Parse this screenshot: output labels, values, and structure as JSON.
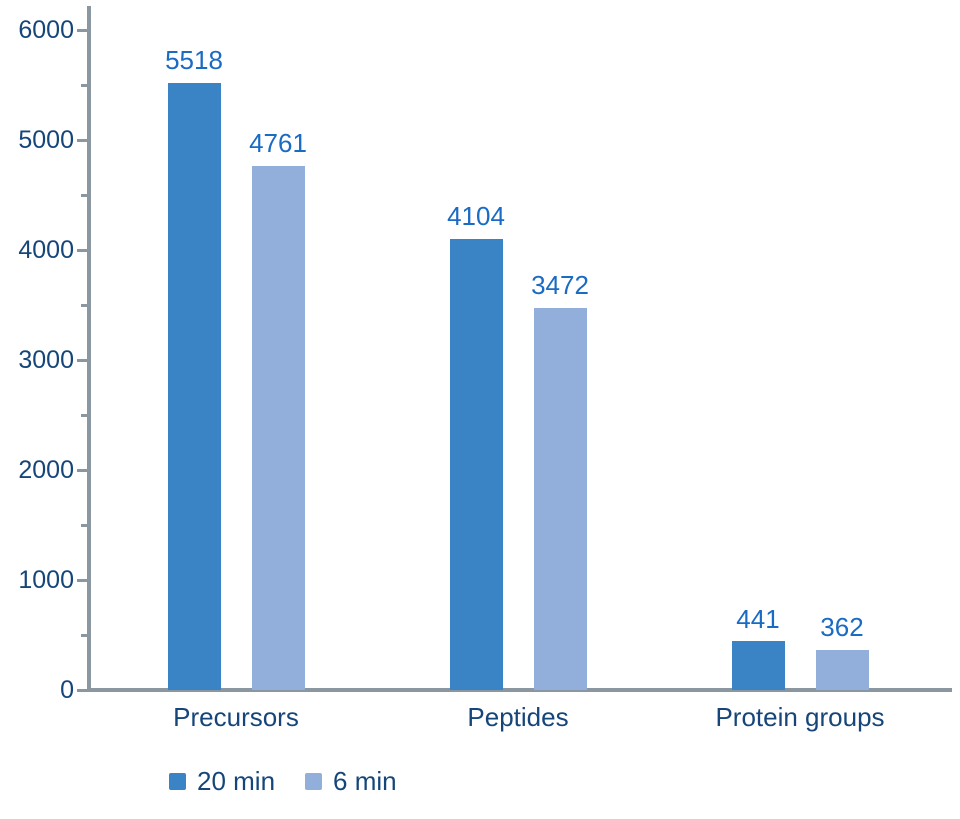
{
  "chart_data": {
    "type": "bar",
    "title": "",
    "categories": [
      "Precursors",
      "Peptides",
      "Protein groups"
    ],
    "series": [
      {
        "name": "20 min",
        "color": "#3A83C5",
        "values": [
          5518,
          4104,
          441
        ]
      },
      {
        "name": "6 min",
        "color": "#92AEDB",
        "values": [
          4761,
          3472,
          362
        ]
      }
    ],
    "xlabel": "",
    "ylabel": "",
    "ylim": [
      0,
      6000
    ],
    "y_major_ticks": [
      0,
      1000,
      2000,
      3000,
      4000,
      5000,
      6000
    ],
    "y_minor_tick_step": 500,
    "grid": false,
    "value_labels": true,
    "legend_position": "bottom-left"
  },
  "colors": {
    "series_20min": "#3A83C5",
    "series_6min": "#92AEDB",
    "axis_line": "#8A97A1",
    "tick_label_text": "#164679",
    "category_label_text": "#164679",
    "legend_text": "#164679",
    "value_label_text": "#1A6BC4",
    "background": "#FFFFFF"
  }
}
